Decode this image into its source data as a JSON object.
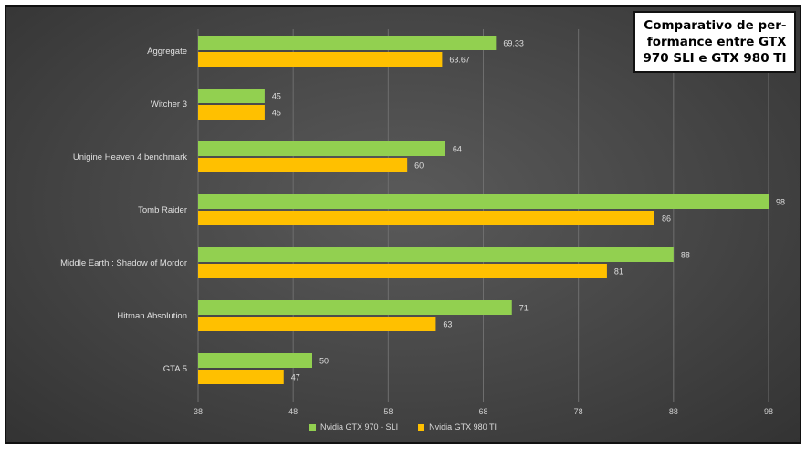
{
  "title": "Comparativo de per-\nformance  entre GTX\n970 SLI e GTX 980 TI",
  "colors": {
    "series1": "#92d050",
    "series2": "#ffc000"
  },
  "chart_data": {
    "type": "bar",
    "orientation": "horizontal",
    "categories": [
      "Aggregate",
      "Witcher 3",
      "Unigine Heaven 4 benchmark",
      "Tomb Raider",
      "Middle Earth : Shadow of Mordor",
      "Hitman Absolution",
      "GTA 5"
    ],
    "series": [
      {
        "name": "Nvidia GTX 970 - SLI",
        "values": [
          69.33,
          45,
          64,
          98,
          88,
          71,
          50
        ],
        "labels": [
          "69.33",
          "45",
          "64",
          "98",
          "88",
          "71",
          "50"
        ]
      },
      {
        "name": "Nvidia GTX 980 TI",
        "values": [
          63.67,
          45,
          60,
          86,
          81,
          63,
          47
        ],
        "labels": [
          "63.67",
          "45",
          "60",
          "86",
          "81",
          "63",
          "47"
        ]
      }
    ],
    "x_ticks": [
      "38",
      "48",
      "58",
      "68",
      "78",
      "88",
      "98"
    ],
    "xlim": [
      38,
      98
    ],
    "grid": "vertical",
    "legend": "bottom"
  }
}
